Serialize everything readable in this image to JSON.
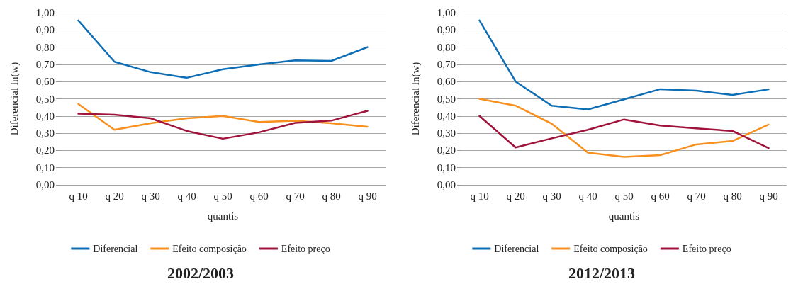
{
  "chart_data": [
    {
      "type": "line",
      "title": "2002/2003",
      "xlabel": "quantis",
      "ylabel": "Diferencial ln(w)",
      "categories": [
        "q 10",
        "q 20",
        "q 30",
        "q 40",
        "q 50",
        "q 60",
        "q 70",
        "q 80",
        "q 90"
      ],
      "series": [
        {
          "name": "Diferencial",
          "color": "#0e6eb5",
          "values": [
            0.955,
            0.715,
            0.655,
            0.622,
            0.672,
            0.7,
            0.723,
            0.72,
            0.8
          ]
        },
        {
          "name": "Efeito composição",
          "color": "#f7901e",
          "values": [
            0.47,
            0.32,
            0.358,
            0.387,
            0.4,
            0.365,
            0.372,
            0.358,
            0.337
          ]
        },
        {
          "name": "Efeito preço",
          "color": "#a0143c",
          "values": [
            0.414,
            0.407,
            0.387,
            0.313,
            0.268,
            0.305,
            0.36,
            0.373,
            0.43
          ]
        }
      ],
      "ylim": [
        0,
        1
      ],
      "yticks": [
        {
          "value": 0,
          "label": "0,00"
        },
        {
          "value": 0.1,
          "label": "0,10"
        },
        {
          "value": 0.2,
          "label": "0,20"
        },
        {
          "value": 0.3,
          "label": "0,30"
        },
        {
          "value": 0.4,
          "label": "0,40"
        },
        {
          "value": 0.5,
          "label": "0,50"
        },
        {
          "value": 0.6,
          "label": "0,60"
        },
        {
          "value": 0.7,
          "label": "0,70"
        },
        {
          "value": 0.8,
          "label": "0,80"
        },
        {
          "value": 0.9,
          "label": "0,90"
        },
        {
          "value": 1,
          "label": "1,00"
        }
      ],
      "grid": "y",
      "legend": "bottom",
      "marker": "none",
      "line_style": "solid"
    },
    {
      "type": "line",
      "title": "2012/2013",
      "xlabel": "quantis",
      "ylabel": "Diferencial ln(w)",
      "categories": [
        "q 10",
        "q 20",
        "q 30",
        "q 40",
        "q 50",
        "q 60",
        "q 70",
        "q 80",
        "q 90"
      ],
      "series": [
        {
          "name": "Diferencial",
          "color": "#0e6eb5",
          "values": [
            0.955,
            0.6,
            0.46,
            0.438,
            0.497,
            0.556,
            0.547,
            0.523,
            0.555
          ]
        },
        {
          "name": "Efeito composição",
          "color": "#f7901e",
          "values": [
            0.5,
            0.46,
            0.355,
            0.187,
            0.163,
            0.173,
            0.235,
            0.255,
            0.35
          ]
        },
        {
          "name": "Efeito preço",
          "color": "#a0143c",
          "values": [
            0.4,
            0.217,
            0.27,
            0.32,
            0.38,
            0.345,
            0.328,
            0.313,
            0.213
          ]
        }
      ],
      "ylim": [
        0,
        1
      ],
      "yticks": [
        {
          "value": 0,
          "label": "0,00"
        },
        {
          "value": 0.1,
          "label": "0,10"
        },
        {
          "value": 0.2,
          "label": "0,20"
        },
        {
          "value": 0.3,
          "label": "0,30"
        },
        {
          "value": 0.4,
          "label": "0,40"
        },
        {
          "value": 0.5,
          "label": "0,50"
        },
        {
          "value": 0.6,
          "label": "0,60"
        },
        {
          "value": 0.7,
          "label": "0,70"
        },
        {
          "value": 0.8,
          "label": "0,80"
        },
        {
          "value": 0.9,
          "label": "0,90"
        },
        {
          "value": 1,
          "label": "1,00"
        }
      ],
      "grid": "y",
      "legend": "bottom",
      "marker": "none",
      "line_style": "solid"
    }
  ]
}
